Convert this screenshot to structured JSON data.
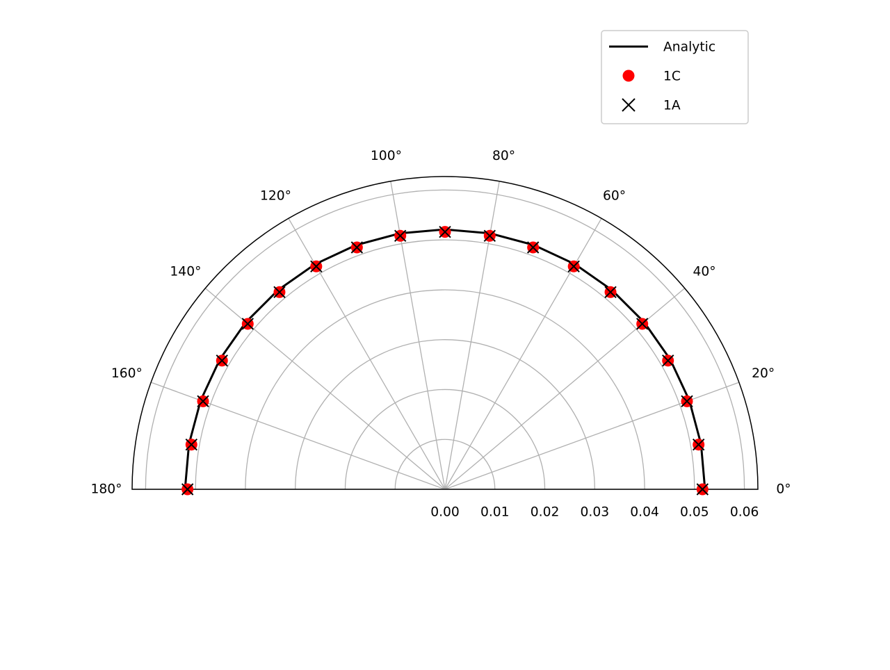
{
  "chart_data": {
    "type": "polar",
    "theta": [
      0,
      10,
      20,
      30,
      40,
      50,
      60,
      70,
      80,
      90,
      100,
      110,
      120,
      130,
      140,
      150,
      160,
      170,
      180
    ],
    "series": [
      {
        "name": "Analytic",
        "color": "#000000",
        "style": "line",
        "values": [
          0.0521,
          0.0521,
          0.0521,
          0.0521,
          0.0521,
          0.0521,
          0.0521,
          0.0521,
          0.0521,
          0.0521,
          0.0521,
          0.0521,
          0.0521,
          0.0521,
          0.0521,
          0.0521,
          0.0521,
          0.0521,
          0.0521
        ]
      },
      {
        "name": "1C",
        "color": "#ff0000",
        "style": "circle",
        "values": [
          0.0516,
          0.0516,
          0.0516,
          0.0516,
          0.0516,
          0.0516,
          0.0516,
          0.0516,
          0.0516,
          0.0516,
          0.0516,
          0.0516,
          0.0516,
          0.0516,
          0.0516,
          0.0516,
          0.0516,
          0.0516,
          0.0516
        ]
      },
      {
        "name": "1A",
        "color": "#000000",
        "style": "x",
        "values": [
          0.0516,
          0.0516,
          0.0516,
          0.0516,
          0.0516,
          0.0516,
          0.0516,
          0.0516,
          0.0516,
          0.0516,
          0.0516,
          0.0516,
          0.0516,
          0.0516,
          0.0516,
          0.0516,
          0.0516,
          0.0516,
          0.0516
        ]
      }
    ],
    "thetalim": [
      0,
      180
    ],
    "thetaticks": [
      {
        "value": 0,
        "label": "0°"
      },
      {
        "value": 20,
        "label": "20°"
      },
      {
        "value": 40,
        "label": "40°"
      },
      {
        "value": 60,
        "label": "60°"
      },
      {
        "value": 80,
        "label": "80°"
      },
      {
        "value": 100,
        "label": "100°"
      },
      {
        "value": 120,
        "label": "120°"
      },
      {
        "value": 140,
        "label": "140°"
      },
      {
        "value": 160,
        "label": "160°"
      },
      {
        "value": 180,
        "label": "180°"
      }
    ],
    "rlim": [
      0,
      0.0627
    ],
    "rticks": [
      {
        "value": 0,
        "label": "0.00"
      },
      0.01,
      0.02,
      0.03,
      0.04,
      0.05,
      0.06
    ],
    "grid": true,
    "legend": "upper right"
  }
}
